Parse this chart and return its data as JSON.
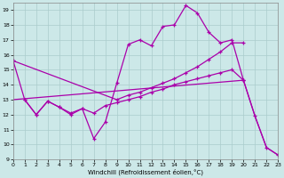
{
  "xlabel": "Windchill (Refroidissement éolien,°C)",
  "bg_color": "#cce8e8",
  "grid_color": "#aacccc",
  "line_color": "#aa00aa",
  "xlim": [
    0,
    23
  ],
  "ylim": [
    9,
    19.5
  ],
  "xticks": [
    0,
    1,
    2,
    3,
    4,
    5,
    6,
    7,
    8,
    9,
    10,
    11,
    12,
    13,
    14,
    15,
    16,
    17,
    18,
    19,
    20,
    21,
    22,
    23
  ],
  "yticks": [
    9,
    10,
    11,
    12,
    13,
    14,
    15,
    16,
    17,
    18,
    19
  ],
  "line1_x": [
    0,
    1,
    2,
    3,
    4,
    5,
    6,
    7,
    8,
    9,
    10,
    11,
    12,
    13,
    14,
    15,
    16,
    17,
    18,
    19,
    20
  ],
  "line1_y": [
    15.6,
    13.0,
    12.0,
    12.9,
    12.5,
    12.0,
    12.4,
    10.4,
    11.5,
    14.1,
    16.7,
    17.0,
    16.6,
    17.9,
    18.0,
    19.3,
    18.8,
    17.5,
    16.8,
    17.0,
    14.3
  ],
  "line2_x": [
    0,
    9,
    10,
    11,
    12,
    13,
    14,
    15,
    16,
    17,
    18,
    19,
    20
  ],
  "line2_y": [
    15.6,
    13.0,
    13.3,
    13.5,
    13.8,
    14.1,
    14.4,
    14.8,
    15.2,
    15.7,
    16.2,
    16.8,
    16.8
  ],
  "line3_x": [
    1,
    2,
    3,
    4,
    5,
    6,
    7,
    8,
    9,
    10,
    11,
    12,
    13,
    14,
    15,
    16,
    17,
    18,
    19,
    20
  ],
  "line3_y": [
    13.0,
    12.0,
    12.9,
    12.5,
    12.1,
    12.4,
    12.1,
    12.6,
    12.8,
    13.0,
    13.2,
    13.5,
    13.7,
    14.0,
    14.2,
    14.4,
    14.6,
    14.8,
    15.0,
    14.3
  ],
  "line4_x": [
    0,
    20,
    21,
    22,
    23
  ],
  "line4_y": [
    13.0,
    14.3,
    11.9,
    9.8,
    9.3
  ]
}
